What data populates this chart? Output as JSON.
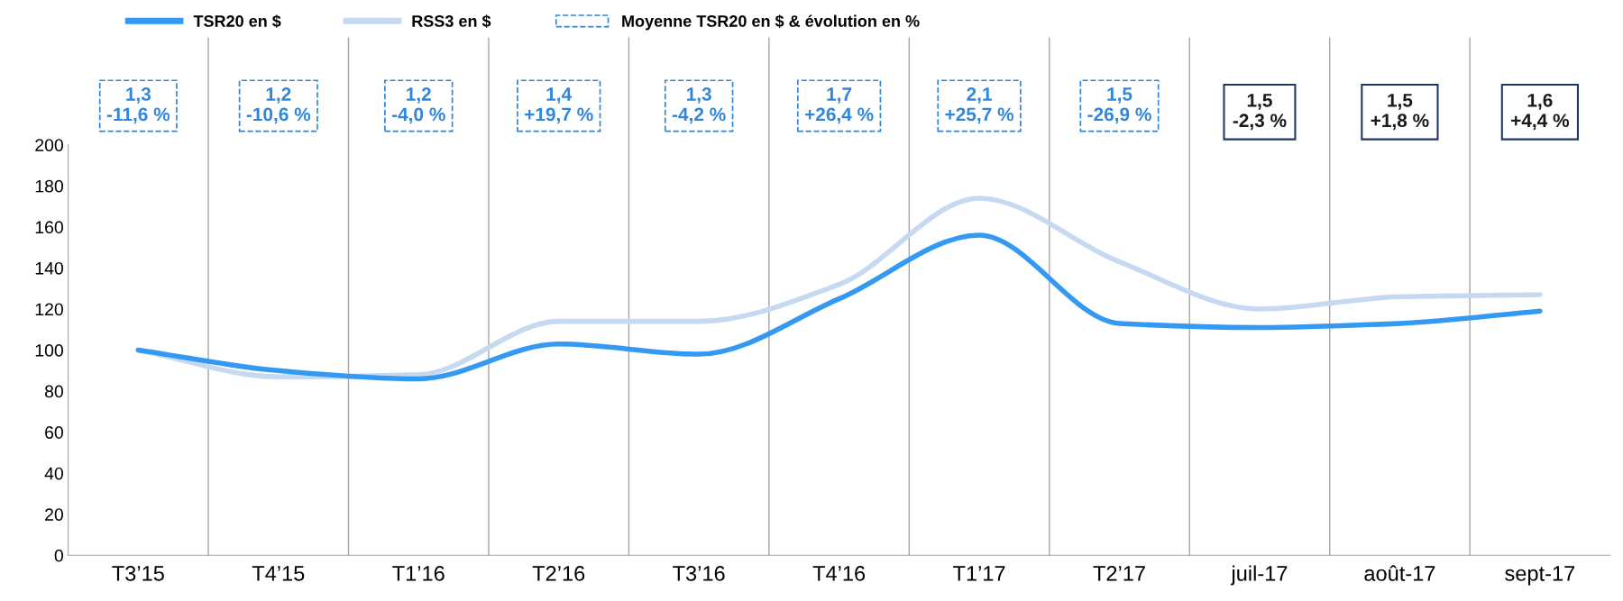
{
  "chart_data": {
    "type": "line",
    "categories": [
      "T3’15",
      "T4’15",
      "T1’16",
      "T2’16",
      "T3’16",
      "T4’16",
      "T1’17",
      "T2’17",
      "juil-17",
      "août-17",
      "sept-17"
    ],
    "series": [
      {
        "name": "RSS3 en $",
        "color": "#c6d9f1",
        "values": [
          100,
          87,
          88,
          114,
          114,
          132,
          174,
          143,
          120,
          126,
          127
        ]
      },
      {
        "name": "TSR20 en $",
        "color": "#3399f3",
        "values": [
          100,
          90,
          86,
          103,
          98,
          125,
          156,
          113,
          111,
          113,
          119
        ]
      },
      {
        "name": "Moyenne TSR20 en $ & évolution en %",
        "type": "other",
        "color": "#2e86de",
        "values": [
          null,
          null,
          null,
          null,
          null,
          null,
          null,
          null,
          null,
          null,
          null
        ],
        "value_labels": [
          "1,3\n-11,6 %",
          "1,2\n-10,6 %",
          "1,2\n-4,0 %",
          "1,4\n+19,7 %",
          "1,3\n-4,2 %",
          "1,7\n+26,4 %",
          "2,1\n+25,7 %",
          "1,5\n-26,9 %",
          null,
          null,
          null
        ]
      }
    ],
    "annotations": [
      "1,5\n-2,3 %",
      "1,5\n+1,8 %",
      "1,6\n+4,4 %"
    ],
    "ylim": [
      0,
      200
    ],
    "yticks": [
      0,
      20,
      40,
      60,
      80,
      100,
      120,
      140,
      160,
      180,
      200
    ],
    "grid": false,
    "legend": "top left"
  }
}
